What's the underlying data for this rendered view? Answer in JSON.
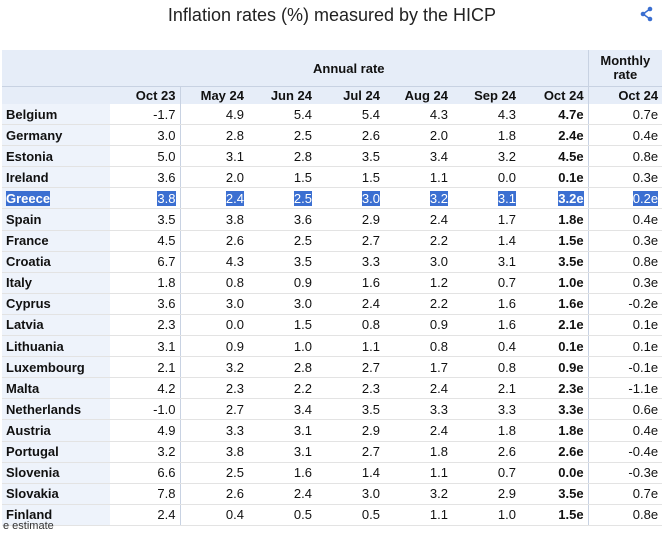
{
  "header": {
    "title": "Inflation rates (%) measured by the HICP"
  },
  "table": {
    "group_headers": [
      "Annual rate",
      "Monthly rate"
    ],
    "columns": [
      "Oct 23",
      "May 24",
      "Jun 24",
      "Jul 24",
      "Aug 24",
      "Sep 24",
      "Oct 24",
      "Oct 24"
    ],
    "rows": [
      [
        "Belgium",
        "-1.7",
        "4.9",
        "5.4",
        "5.4",
        "4.3",
        "4.3",
        "4.7e",
        "0.7e"
      ],
      [
        "Germany",
        "3.0",
        "2.8",
        "2.5",
        "2.6",
        "2.0",
        "1.8",
        "2.4e",
        "0.4e"
      ],
      [
        "Estonia",
        "5.0",
        "3.1",
        "2.8",
        "3.5",
        "3.4",
        "3.2",
        "4.5e",
        "0.8e"
      ],
      [
        "Ireland",
        "3.6",
        "2.0",
        "1.5",
        "1.5",
        "1.1",
        "0.0",
        "0.1e",
        "0.3e"
      ],
      [
        "Greece",
        "3.8",
        "2.4",
        "2.5",
        "3.0",
        "3.2",
        "3.1",
        "3.2e",
        "0.2e"
      ],
      [
        "Spain",
        "3.5",
        "3.8",
        "3.6",
        "2.9",
        "2.4",
        "1.7",
        "1.8e",
        "0.4e"
      ],
      [
        "France",
        "4.5",
        "2.6",
        "2.5",
        "2.7",
        "2.2",
        "1.4",
        "1.5e",
        "0.3e"
      ],
      [
        "Croatia",
        "6.7",
        "4.3",
        "3.5",
        "3.3",
        "3.0",
        "3.1",
        "3.5e",
        "0.8e"
      ],
      [
        "Italy",
        "1.8",
        "0.8",
        "0.9",
        "1.6",
        "1.2",
        "0.7",
        "1.0e",
        "0.3e"
      ],
      [
        "Cyprus",
        "3.6",
        "3.0",
        "3.0",
        "2.4",
        "2.2",
        "1.6",
        "1.6e",
        "-0.2e"
      ],
      [
        "Latvia",
        "2.3",
        "0.0",
        "1.5",
        "0.8",
        "0.9",
        "1.6",
        "2.1e",
        "0.1e"
      ],
      [
        "Lithuania",
        "3.1",
        "0.9",
        "1.0",
        "1.1",
        "0.8",
        "0.4",
        "0.1e",
        "0.1e"
      ],
      [
        "Luxembourg",
        "2.1",
        "3.2",
        "2.8",
        "2.7",
        "1.7",
        "0.8",
        "0.9e",
        "-0.1e"
      ],
      [
        "Malta",
        "4.2",
        "2.3",
        "2.2",
        "2.3",
        "2.4",
        "2.1",
        "2.3e",
        "-1.1e"
      ],
      [
        "Netherlands",
        "-1.0",
        "2.7",
        "3.4",
        "3.5",
        "3.3",
        "3.3",
        "3.3e",
        "0.6e"
      ],
      [
        "Austria",
        "4.9",
        "3.3",
        "3.1",
        "2.9",
        "2.4",
        "1.8",
        "1.8e",
        "0.4e"
      ],
      [
        "Portugal",
        "3.2",
        "3.8",
        "3.1",
        "2.7",
        "1.8",
        "2.6",
        "2.6e",
        "-0.4e"
      ],
      [
        "Slovenia",
        "6.6",
        "2.5",
        "1.6",
        "1.4",
        "1.1",
        "0.7",
        "0.0e",
        "-0.3e"
      ],
      [
        "Slovakia",
        "7.8",
        "2.6",
        "2.4",
        "3.0",
        "3.2",
        "2.9",
        "3.5e",
        "0.7e"
      ],
      [
        "Finland",
        "2.4",
        "0.4",
        "0.5",
        "0.5",
        "1.1",
        "1.0",
        "1.5e",
        "0.8e"
      ]
    ],
    "highlighted_row": 4
  },
  "footnote": "e estimate"
}
